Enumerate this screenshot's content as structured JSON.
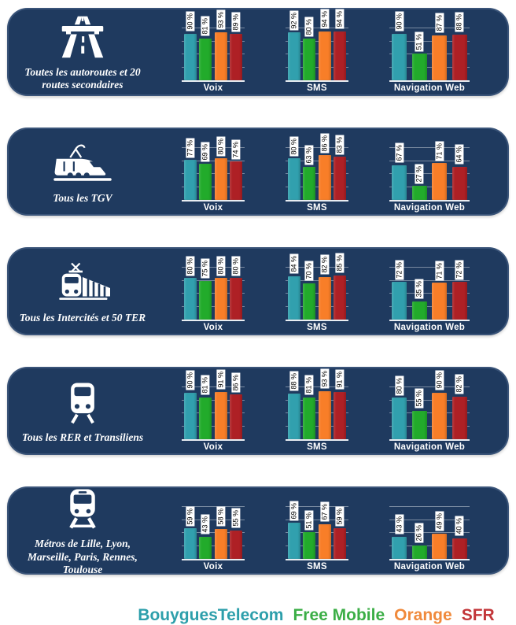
{
  "page": {
    "background": "#ffffff",
    "panel_color": "#1f3a5f"
  },
  "unit_suffix": " %",
  "operators": [
    {
      "name": "BouyguesTelecom",
      "bar_color": "#31a0ae",
      "legend_color": "#2d9fab"
    },
    {
      "name": "Free Mobile",
      "bar_color": "#22ab2b",
      "legend_color": "#3bae46"
    },
    {
      "name": "Orange",
      "bar_color": "#f87e28",
      "legend_color": "#f08a3c"
    },
    {
      "name": "SFR",
      "bar_color": "#ae2025",
      "legend_color": "#c3373a"
    }
  ],
  "chart_data": [
    {
      "type": "bar",
      "group": "Toutes les autoroutes et 20 routes secondaires",
      "icon": "highway-icon",
      "categories": [
        "Voix",
        "SMS",
        "Navigation Web"
      ],
      "ylim": [
        0,
        100
      ],
      "unit": "%",
      "grid": true,
      "series": [
        {
          "name": "BouyguesTelecom",
          "values": [
            90,
            92,
            90
          ]
        },
        {
          "name": "Free Mobile",
          "values": [
            81,
            80,
            51
          ]
        },
        {
          "name": "Orange",
          "values": [
            93,
            94,
            87
          ]
        },
        {
          "name": "SFR",
          "values": [
            89,
            94,
            88
          ]
        }
      ]
    },
    {
      "type": "bar",
      "group": "Tous les TGV",
      "icon": "tgv-icon",
      "categories": [
        "Voix",
        "SMS",
        "Navigation Web"
      ],
      "ylim": [
        0,
        100
      ],
      "unit": "%",
      "grid": true,
      "series": [
        {
          "name": "BouyguesTelecom",
          "values": [
            77,
            80,
            67
          ]
        },
        {
          "name": "Free Mobile",
          "values": [
            69,
            63,
            27
          ]
        },
        {
          "name": "Orange",
          "values": [
            80,
            86,
            71
          ]
        },
        {
          "name": "SFR",
          "values": [
            74,
            83,
            64
          ]
        }
      ]
    },
    {
      "type": "bar",
      "group": "Tous les Intercités et 50 TER",
      "icon": "intercites-icon",
      "categories": [
        "Voix",
        "SMS",
        "Navigation Web"
      ],
      "ylim": [
        0,
        100
      ],
      "unit": "%",
      "grid": true,
      "series": [
        {
          "name": "BouyguesTelecom",
          "values": [
            80,
            84,
            72
          ]
        },
        {
          "name": "Free Mobile",
          "values": [
            75,
            70,
            35
          ]
        },
        {
          "name": "Orange",
          "values": [
            80,
            82,
            71
          ]
        },
        {
          "name": "SFR",
          "values": [
            80,
            85,
            72
          ]
        }
      ]
    },
    {
      "type": "bar",
      "group": "Tous les RER et Transiliens",
      "icon": "rer-icon",
      "categories": [
        "Voix",
        "SMS",
        "Navigation Web"
      ],
      "ylim": [
        0,
        100
      ],
      "unit": "%",
      "grid": true,
      "series": [
        {
          "name": "BouyguesTelecom",
          "values": [
            90,
            88,
            80
          ]
        },
        {
          "name": "Free Mobile",
          "values": [
            81,
            81,
            55
          ]
        },
        {
          "name": "Orange",
          "values": [
            91,
            93,
            90
          ]
        },
        {
          "name": "SFR",
          "values": [
            86,
            91,
            82
          ]
        }
      ]
    },
    {
      "type": "bar",
      "group": "Métros de Lille, Lyon, Marseille, Paris, Rennes, Toulouse",
      "icon": "metro-icon",
      "categories": [
        "Voix",
        "SMS",
        "Navigation Web"
      ],
      "ylim": [
        0,
        100
      ],
      "unit": "%",
      "grid": true,
      "series": [
        {
          "name": "BouyguesTelecom",
          "values": [
            59,
            69,
            43
          ]
        },
        {
          "name": "Free Mobile",
          "values": [
            43,
            51,
            26
          ]
        },
        {
          "name": "Orange",
          "values": [
            58,
            67,
            49
          ]
        },
        {
          "name": "SFR",
          "values": [
            55,
            59,
            40
          ]
        }
      ]
    }
  ],
  "legend": {
    "items": [
      "BouyguesTelecom",
      "Free Mobile",
      "Orange",
      "SFR"
    ]
  }
}
